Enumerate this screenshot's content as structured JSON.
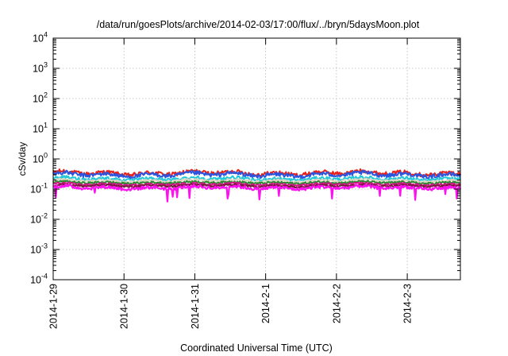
{
  "chart_data": {
    "type": "line",
    "title": "/data/run/goesPlots/archive/2014-02-03/17:00/flux/../bryn/5daysMoon.plot",
    "xlabel": "Coordinated Universal Time (UTC)",
    "ylabel": "cSv/day",
    "yscale": "log",
    "ylim": [
      0.0001,
      10000
    ],
    "xlim": [
      "2014-01-29 00:00",
      "2014-02-03 18:00"
    ],
    "grid": true,
    "legend": "none",
    "x_tick_labels": [
      "2014-1-29",
      "2014-1-30",
      "2014-1-31",
      "2014-2-1",
      "2014-2-2",
      "2014-2-3"
    ],
    "y_tick_labels": [
      {
        "base": "10",
        "exp": "-4"
      },
      {
        "base": "10",
        "exp": "-3"
      },
      {
        "base": "10",
        "exp": "-2"
      },
      {
        "base": "10",
        "exp": "-1"
      },
      {
        "base": "10",
        "exp": "0"
      },
      {
        "base": "10",
        "exp": "1"
      },
      {
        "base": "10",
        "exp": "2"
      },
      {
        "base": "10",
        "exp": "3"
      },
      {
        "base": "10",
        "exp": "4"
      }
    ],
    "series": [
      {
        "color": "#e8211a",
        "level": 0.34,
        "amp": 0.2,
        "dips": false
      },
      {
        "color": "#2a55e0",
        "level": 0.3,
        "amp": 0.2,
        "dips": false
      },
      {
        "color": "#22c8d8",
        "level": 0.22,
        "amp": 0.15,
        "dips": false
      },
      {
        "color": "#d8d8c0",
        "level": 0.19,
        "amp": 0.12,
        "dips": false
      },
      {
        "color": "#2a8a30",
        "level": 0.165,
        "amp": 0.1,
        "dips": false
      },
      {
        "color": "#d4148a",
        "level": 0.145,
        "amp": 0.1,
        "dips": false
      },
      {
        "color": "#7a1a3a",
        "level": 0.13,
        "amp": 0.1,
        "dips": false
      },
      {
        "color": "#ff10f0",
        "level": 0.112,
        "amp": 0.16,
        "dips": true
      }
    ]
  }
}
